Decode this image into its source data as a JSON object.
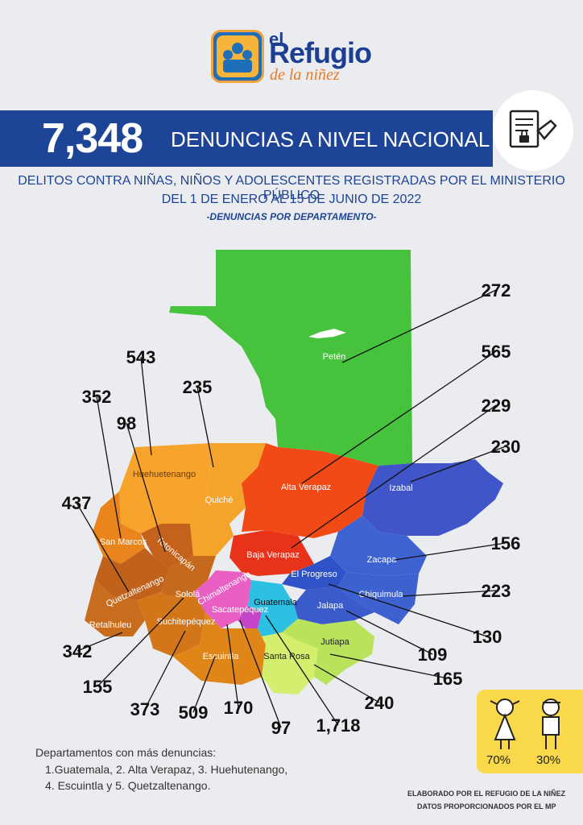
{
  "brand": {
    "logo_top": "el",
    "logo_main": "Refugio",
    "logo_sub": "de la niñez"
  },
  "header": {
    "total": "7,348",
    "title": "DENUNCIAS A NIVEL NACIONAL",
    "subtitle_line1": "DELITOS CONTRA NIÑAS, NIÑOS Y ADOLESCENTES  REGISTRADAS POR EL MINISTERIO PÚBLICO",
    "subtitle_line2": "DEL 1 DE ENERO AL 15 DE JUNIO DE 2022",
    "subtitle_line3": "-DENUNCIAS POR DEPARTAMENTO-",
    "icon": "document-lock-icon"
  },
  "departments": [
    {
      "name": "Petén",
      "value": "272",
      "color": "#47c23c"
    },
    {
      "name": "Alta Verapaz",
      "value": "565",
      "color": "#f24a16"
    },
    {
      "name": "Baja Verapaz",
      "value": "229",
      "color": "#e8321a"
    },
    {
      "name": "Izabal",
      "value": "230",
      "color": "#3f55c8"
    },
    {
      "name": "Zacapa",
      "value": "156",
      "color": "#3e63d0"
    },
    {
      "name": "Chiquimula",
      "value": "223",
      "color": "#3d62cf"
    },
    {
      "name": "El Progreso",
      "value": "130",
      "color": "#2f53c7"
    },
    {
      "name": "Jalapa",
      "value": "109",
      "color": "#3a5bc9"
    },
    {
      "name": "Jutiapa",
      "value": "165",
      "color": "#b9e35a"
    },
    {
      "name": "Santa Rosa",
      "value": "240",
      "color": "#d4ee6e"
    },
    {
      "name": "Guatemala",
      "value": "1,718",
      "color": "#2bc0e4"
    },
    {
      "name": "Sacatepéquez",
      "value": "97",
      "color": "#c545c8"
    },
    {
      "name": "Chimaltenango",
      "value": "170",
      "color": "#e95fc3"
    },
    {
      "name": "Escuintla",
      "value": "509",
      "color": "#e08518"
    },
    {
      "name": "Suchitepéquez",
      "value": "373",
      "color": "#d3761a"
    },
    {
      "name": "Sololá",
      "value": "155",
      "color": "#c56a1c"
    },
    {
      "name": "Retalhuleu",
      "value": "342",
      "color": "#c86c1e"
    },
    {
      "name": "Quetzaltenango",
      "value": "437",
      "color": "#c0621c"
    },
    {
      "name": "San Marcos",
      "value": "352",
      "color": "#f08d1e"
    },
    {
      "name": "Totonicapán",
      "value": "98",
      "color": "#c4611c"
    },
    {
      "name": "Huehuetenango",
      "value": "543",
      "color": "#f7a42c"
    },
    {
      "name": "Quiché",
      "value": "235",
      "color": "#f4a42a"
    }
  ],
  "top_departments": {
    "title": "Departamentos con más denuncias:",
    "line1": "1.Guatemala, 2. Alta Verapaz, 3. Huehutenango,",
    "line2": "4. Escuintla y 5. Quetzaltenango."
  },
  "gender": {
    "girls_pct": "70%",
    "boys_pct": "30%",
    "girl_icon": "girl-icon",
    "boy_icon": "boy-icon"
  },
  "credits": {
    "line1": "ELABORADO POR EL REFUGIO DE LA NIÑEZ",
    "line2": "DATOS PROPORCIONADOS POR EL MP"
  }
}
